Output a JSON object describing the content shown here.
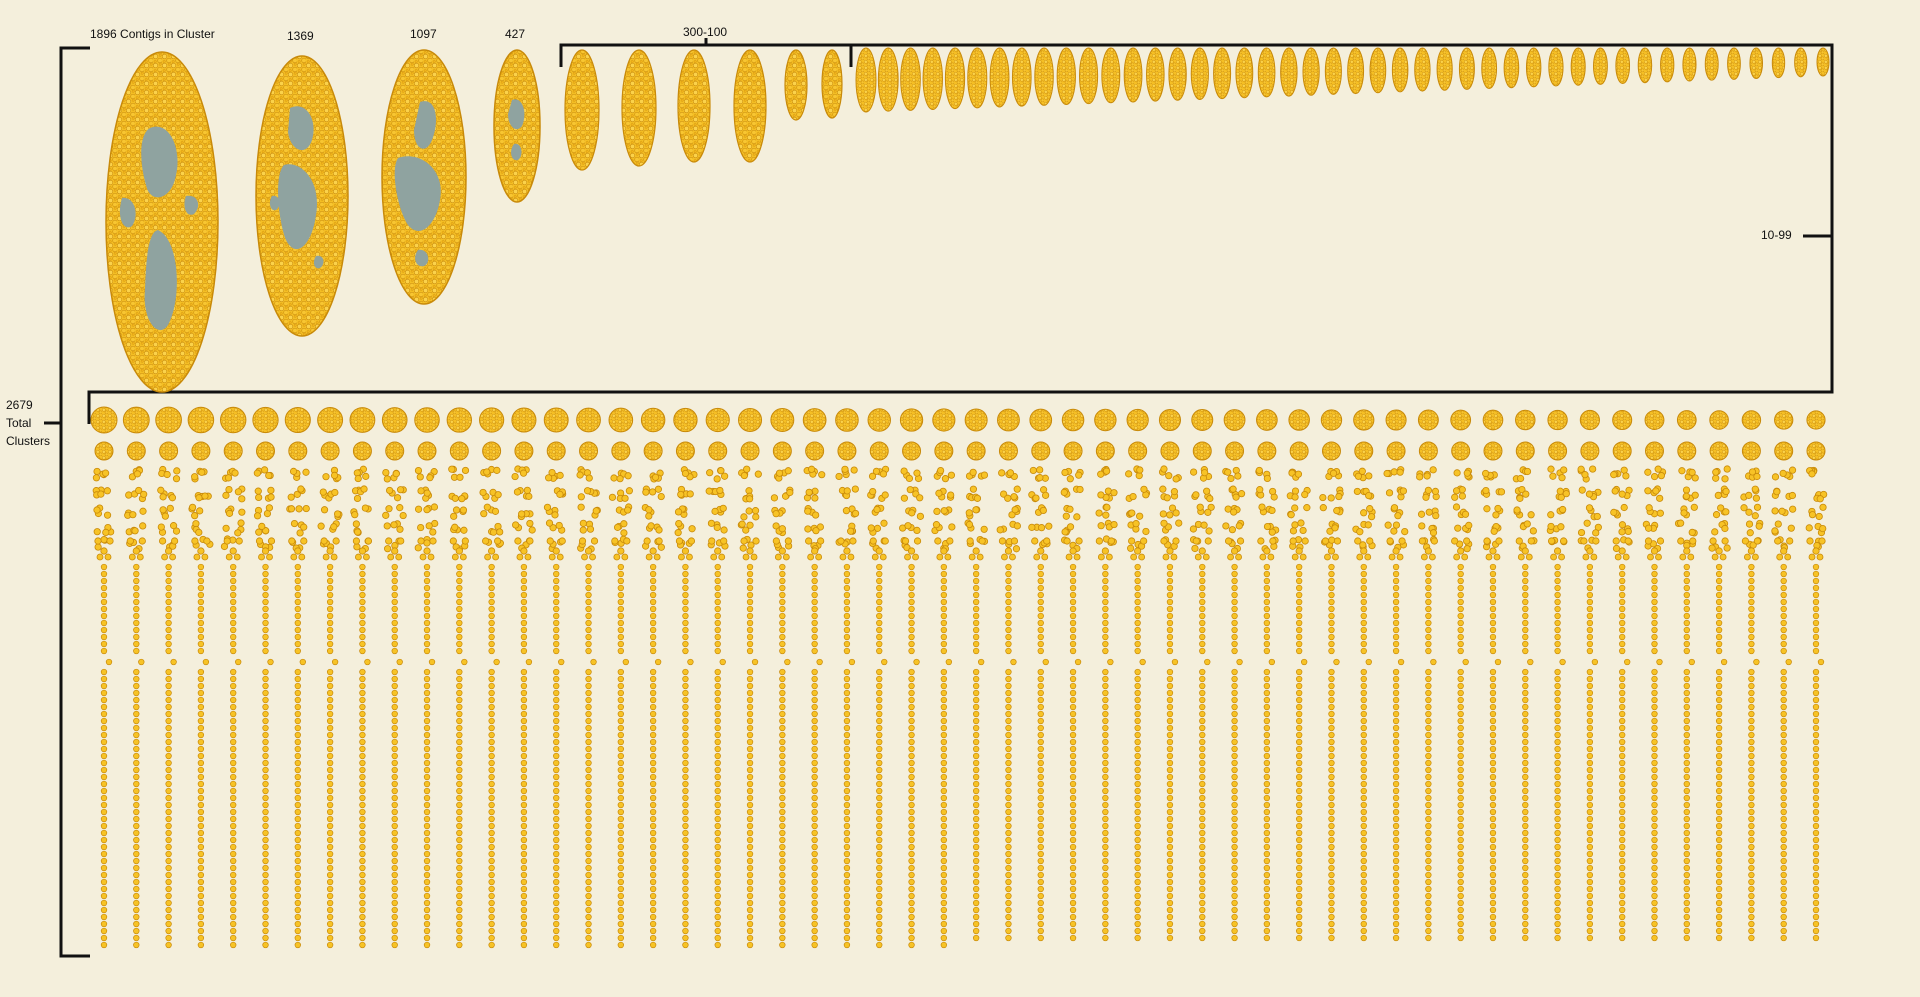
{
  "labels": {
    "largest_cluster": "1896 Contigs in Cluster",
    "cluster_2": "1369",
    "cluster_3": "1097",
    "cluster_4": "427",
    "range_100_300": "300-100",
    "range_10_99": "10-99",
    "total_count": "2679",
    "total_word": "Total",
    "clusters_word": "Clusters"
  },
  "diagram_data": {
    "large_clusters": [
      1896,
      1369,
      1097,
      427
    ],
    "mid_range_count": 6,
    "small_range_count": 44,
    "grid_columns": 54
  },
  "colors": {
    "background": "#f4efdc",
    "node_fill": "#f7c326",
    "node_stroke": "#c88a0a",
    "cavity": "#8fa3a0",
    "bracket": "#111111"
  }
}
